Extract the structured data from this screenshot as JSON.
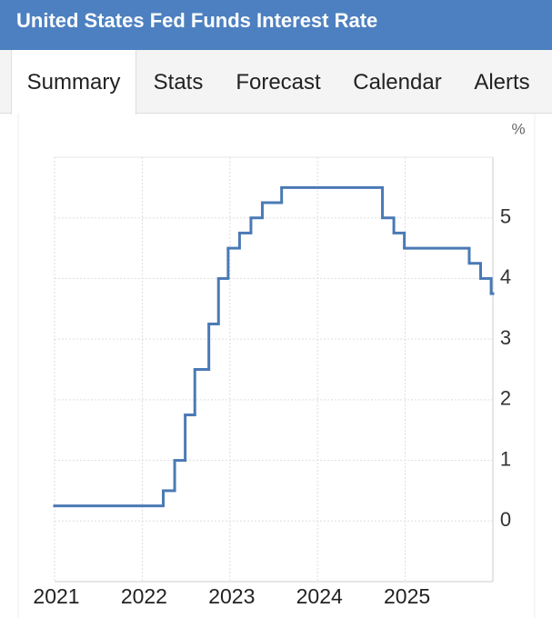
{
  "header": {
    "title": "United States Fed Funds Interest Rate"
  },
  "tabs": [
    "Summary",
    "Stats",
    "Forecast",
    "Calendar",
    "Alerts"
  ],
  "active_tab": 0,
  "chart_data": {
    "type": "line",
    "step": true,
    "y_label": "%",
    "color": "#4a7ab5",
    "x": [
      2021.0,
      2022.24,
      2022.37,
      2022.49,
      2022.6,
      2022.76,
      2022.87,
      2022.98,
      2023.11,
      2023.24,
      2023.37,
      2023.59,
      2024.74,
      2024.87,
      2024.99,
      2025.73,
      2025.86,
      2025.98
    ],
    "values": [
      0.25,
      0.5,
      1.0,
      1.75,
      2.5,
      3.25,
      4.0,
      4.5,
      4.75,
      5.0,
      5.25,
      5.5,
      5.0,
      4.75,
      4.5,
      4.25,
      4.0,
      3.75
    ],
    "xlim": [
      2021,
      2026
    ],
    "xticks": [
      2021,
      2022,
      2023,
      2024,
      2025
    ],
    "ylim": [
      -1,
      6
    ],
    "yticks": [
      0,
      1,
      2,
      3,
      4,
      5
    ],
    "grid": true
  }
}
